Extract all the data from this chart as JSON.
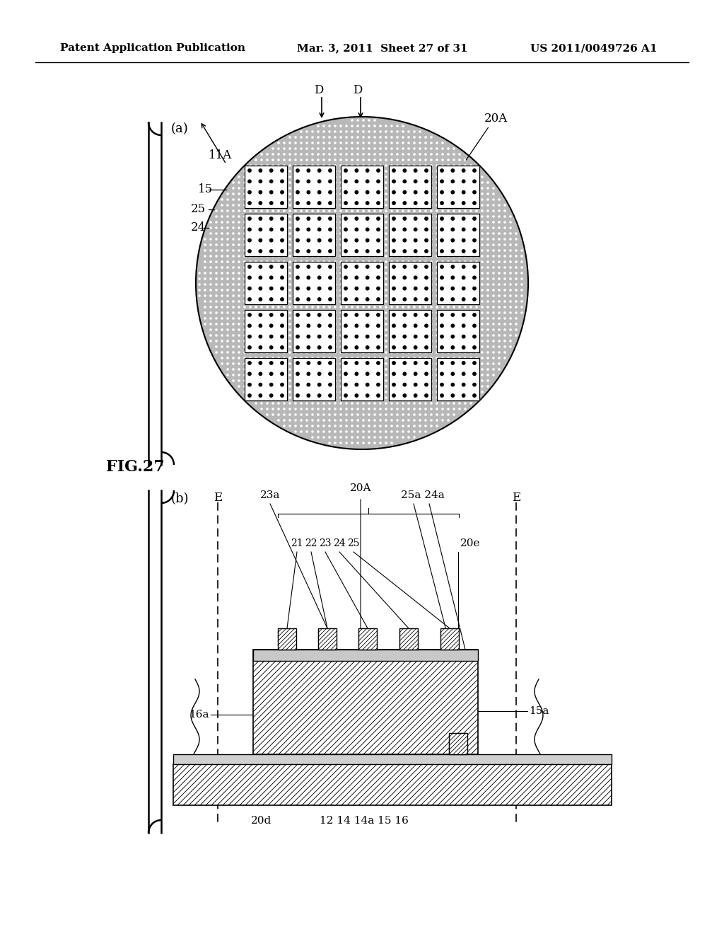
{
  "header_left": "Patent Application Publication",
  "header_center": "Mar. 3, 2011  Sheet 27 of 31",
  "header_right": "US 2011/0049726 A1",
  "fig_label": "FIG.27",
  "panel_a_label": "(a)",
  "panel_b_label": "(b)",
  "bg_color": "#ffffff",
  "line_color": "#000000"
}
